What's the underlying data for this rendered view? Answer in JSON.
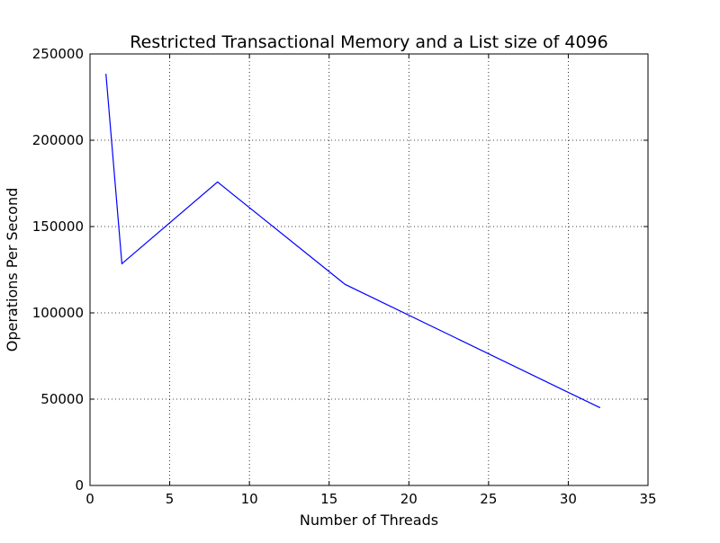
{
  "chart_data": {
    "type": "line",
    "title": "Restricted Transactional Memory and a List size of 4096",
    "xlabel": "Number of Threads",
    "ylabel": "Operations Per Second",
    "xlim": [
      0,
      35
    ],
    "ylim": [
      0,
      250000
    ],
    "xticks": [
      0,
      5,
      10,
      15,
      20,
      25,
      30,
      35
    ],
    "yticks": [
      0,
      50000,
      100000,
      150000,
      200000,
      250000
    ],
    "xtick_labels": [
      "0",
      "5",
      "10",
      "15",
      "20",
      "25",
      "30",
      "35"
    ],
    "ytick_labels": [
      "0",
      "50000",
      "100000",
      "150000",
      "200000",
      "250000"
    ],
    "grid": true,
    "series": [
      {
        "color": "#0000ff",
        "x": [
          1,
          2,
          8,
          16,
          32
        ],
        "y": [
          238500,
          128500,
          175800,
          116500,
          45000
        ]
      }
    ]
  }
}
